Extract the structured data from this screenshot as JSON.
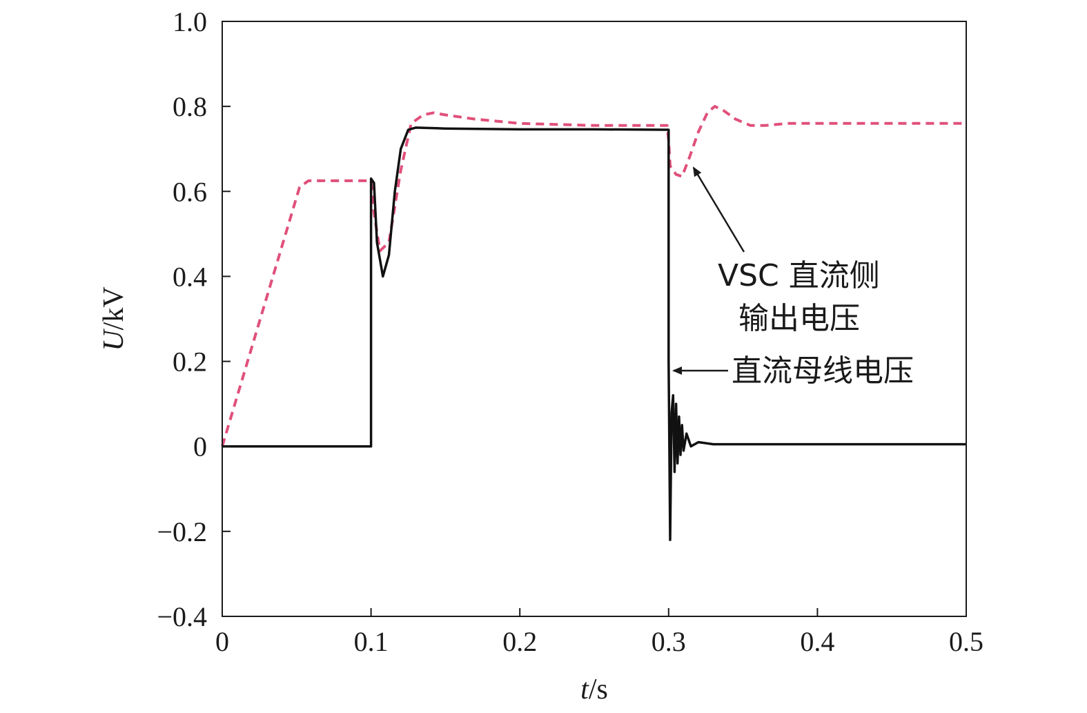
{
  "chart_data": {
    "type": "line",
    "xlabel_var": "t",
    "xlabel_unit": "/s",
    "ylabel_var": "U",
    "ylabel_unit": "/kV",
    "xlim": [
      0,
      0.5
    ],
    "ylim": [
      -0.4,
      1.0
    ],
    "xticks": [
      0,
      0.1,
      0.2,
      0.3,
      0.4,
      0.5
    ],
    "xtick_labels": [
      "0",
      "0.1",
      "0.2",
      "0.3",
      "0.4",
      "0.5"
    ],
    "yticks": [
      -0.4,
      -0.2,
      0,
      0.2,
      0.4,
      0.6,
      0.8,
      1.0
    ],
    "ytick_labels": [
      "−0.4",
      "−0.2",
      "0",
      "0.2",
      "0.4",
      "0.6",
      "0.8",
      "1.0"
    ],
    "grid": false,
    "legend": "none",
    "series": [
      {
        "name": "VSC 直流侧输出电压",
        "color": "#e0507a",
        "style": "dashed",
        "x": [
          0,
          0.052,
          0.058,
          0.1,
          0.102,
          0.106,
          0.112,
          0.12,
          0.127,
          0.135,
          0.142,
          0.15,
          0.17,
          0.2,
          0.25,
          0.299,
          0.3,
          0.301,
          0.305,
          0.309,
          0.314,
          0.32,
          0.326,
          0.331,
          0.337,
          0.345,
          0.355,
          0.365,
          0.38,
          0.42,
          0.5
        ],
        "y": [
          0,
          0.61,
          0.625,
          0.625,
          0.55,
          0.46,
          0.48,
          0.65,
          0.76,
          0.78,
          0.785,
          0.78,
          0.77,
          0.76,
          0.755,
          0.755,
          0.72,
          0.66,
          0.64,
          0.635,
          0.68,
          0.74,
          0.785,
          0.8,
          0.79,
          0.77,
          0.755,
          0.755,
          0.76,
          0.76,
          0.76
        ]
      },
      {
        "name": "直流母线电压",
        "color": "#111111",
        "style": "solid",
        "x": [
          0,
          0.1,
          0.1,
          0.102,
          0.104,
          0.108,
          0.112,
          0.116,
          0.12,
          0.125,
          0.13,
          0.15,
          0.2,
          0.25,
          0.299,
          0.3,
          0.3,
          0.301,
          0.302,
          0.303,
          0.304,
          0.305,
          0.306,
          0.307,
          0.308,
          0.309,
          0.31,
          0.312,
          0.315,
          0.32,
          0.33,
          0.35,
          0.5
        ],
        "y": [
          0,
          0,
          0.63,
          0.62,
          0.48,
          0.4,
          0.45,
          0.6,
          0.7,
          0.745,
          0.75,
          0.748,
          0.746,
          0.746,
          0.745,
          0.745,
          0.2,
          -0.22,
          0.08,
          0.12,
          -0.06,
          0.1,
          -0.04,
          0.07,
          -0.02,
          0.05,
          -0.01,
          0.03,
          0.0,
          0.01,
          0.005,
          0.005,
          0.005
        ]
      }
    ],
    "annotations": [
      {
        "text_line1": "VSC 直流侧",
        "text_line2": "输出电压",
        "x": 0.31,
        "y": 0.645
      },
      {
        "text": "直流母线电压",
        "x": 0.3,
        "y": 0.18
      }
    ]
  }
}
